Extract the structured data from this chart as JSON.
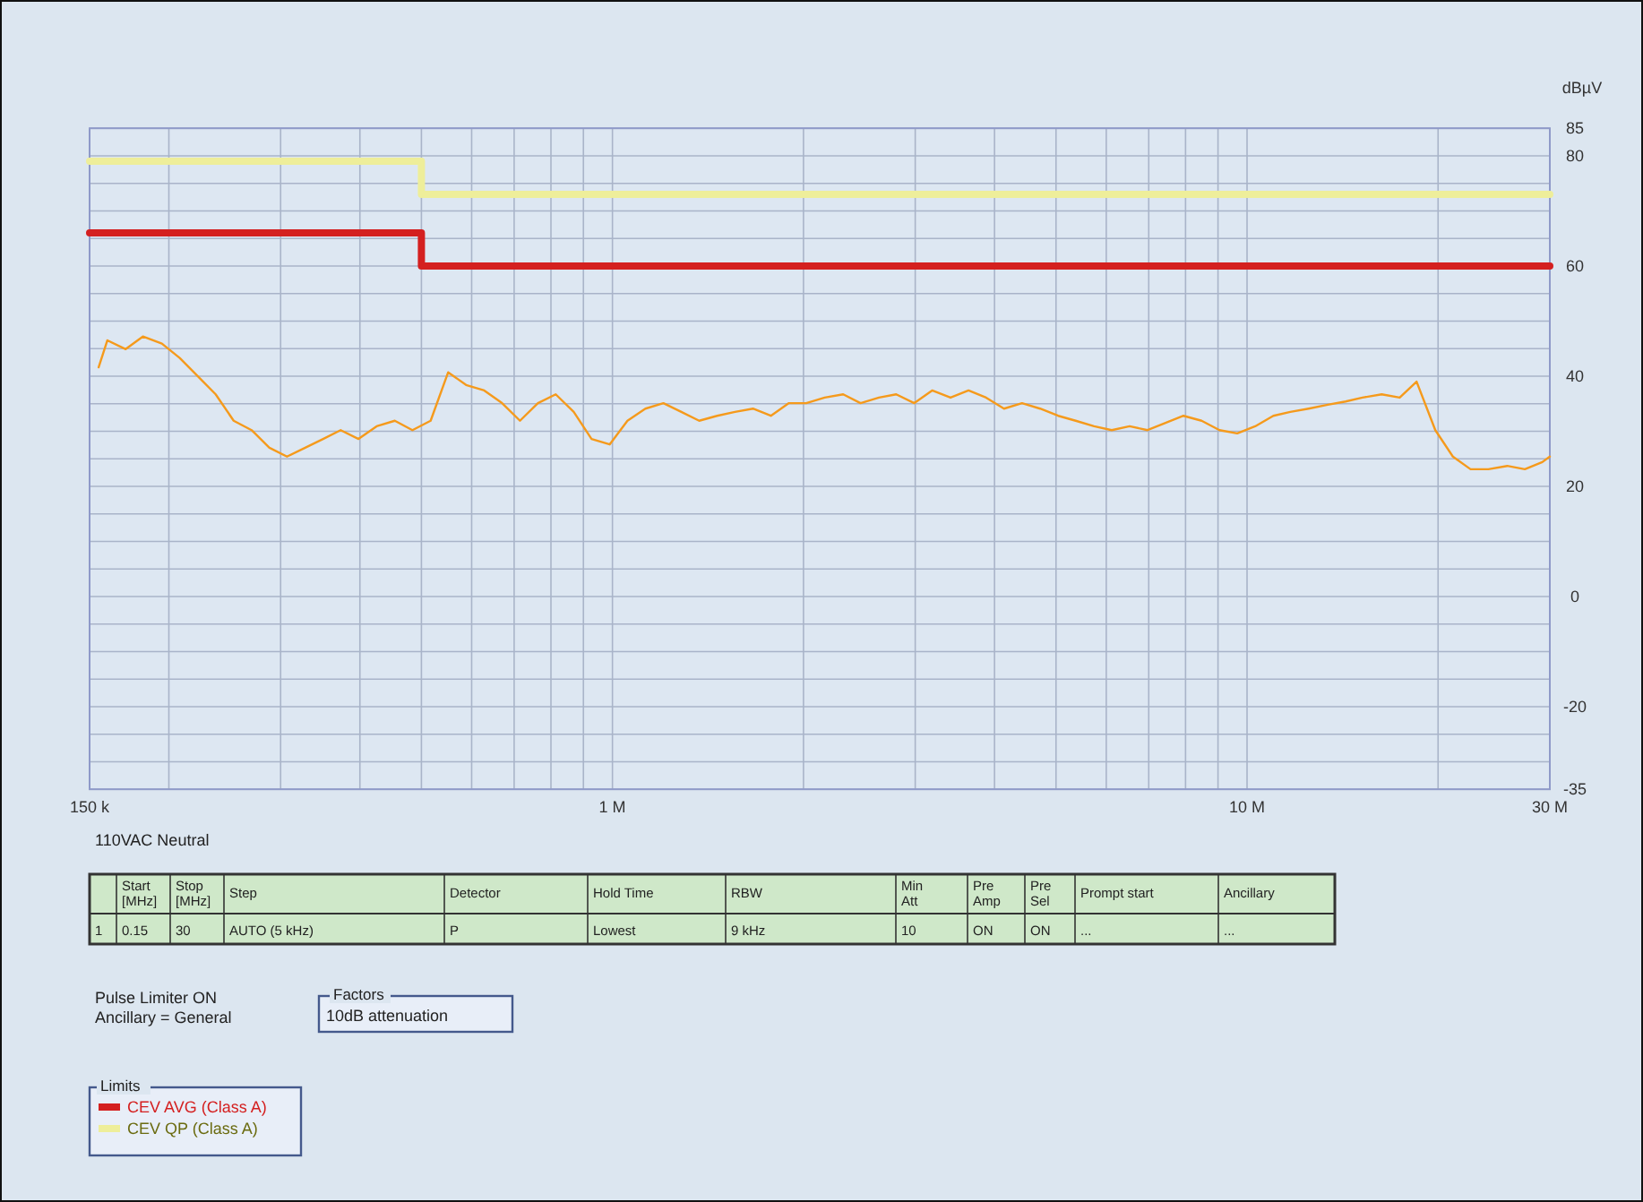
{
  "chart_data": [
    {
      "type": "line",
      "ylabel": "dBµV",
      "xlim": [
        0.15,
        30
      ],
      "log": "x",
      "grid": true,
      "legend": "bottom left",
      "legend_title": "Limits",
      "xticks": [
        {
          "value": 0.15,
          "label": "150 k"
        },
        {
          "value": 0.2,
          "label": null
        },
        {
          "value": 0.3,
          "label": null
        },
        {
          "value": 0.4,
          "label": null
        },
        {
          "value": 0.5,
          "label": null
        },
        {
          "value": 0.6,
          "label": null
        },
        {
          "value": 0.7,
          "label": null
        },
        {
          "value": 0.8,
          "label": null
        },
        {
          "value": 0.9,
          "label": null
        },
        {
          "value": 1,
          "label": "1 M"
        },
        {
          "value": 2,
          "label": null
        },
        {
          "value": 3,
          "label": null
        },
        {
          "value": 4,
          "label": null
        },
        {
          "value": 5,
          "label": null
        },
        {
          "value": 6,
          "label": null
        },
        {
          "value": 7,
          "label": null
        },
        {
          "value": 8,
          "label": null
        },
        {
          "value": 9,
          "label": null
        },
        {
          "value": 10,
          "label": "10 M"
        },
        {
          "value": 20,
          "label": null
        },
        {
          "value": 30,
          "label": "30 M"
        }
      ],
      "ylim": [
        -35,
        85
      ],
      "yticks": [
        85,
        80,
        {
          "value": 75,
          "label": null
        },
        {
          "value": 70,
          "label": null
        },
        {
          "value": 65,
          "label": null
        },
        60,
        {
          "value": 55,
          "label": null
        },
        {
          "value": 50,
          "label": null
        },
        {
          "value": 45,
          "label": null
        },
        40,
        {
          "value": 35,
          "label": null
        },
        {
          "value": 30,
          "label": null
        },
        {
          "value": 25,
          "label": null
        },
        20,
        {
          "value": 15,
          "label": null
        },
        {
          "value": 10,
          "label": null
        },
        {
          "value": 5,
          "label": null
        },
        0,
        {
          "value": -5,
          "label": null
        },
        {
          "value": -10,
          "label": null
        },
        {
          "value": -15,
          "label": null
        },
        -20,
        {
          "value": -25,
          "label": null
        },
        {
          "value": -30,
          "label": null
        },
        -35
      ],
      "annotations": [
        "110VAC Neutral",
        "Pulse Limiter ON",
        "Ancillary = General",
        "Factors",
        "10dB attenuation"
      ],
      "series": [
        {
          "type": "step",
          "name": "CEV QP (Class A)",
          "color": "#eeee9a",
          "x": [
            0.15,
            0.5,
            30
          ],
          "values": [
            79,
            73,
            73
          ]
        },
        {
          "type": "step",
          "name": "CEV AVG (Class A)",
          "color": "#d42020",
          "x": [
            0.15,
            0.5,
            30
          ],
          "values": [
            66,
            60,
            60
          ]
        },
        {
          "type": "line",
          "color": "#f59a1c",
          "x": [
            0.155,
            0.16,
            0.171,
            0.182,
            0.195,
            0.208,
            0.222,
            0.237,
            0.253,
            0.27,
            0.288,
            0.307,
            0.328,
            0.35,
            0.373,
            0.398,
            0.425,
            0.454,
            0.484,
            0.517,
            0.551,
            0.588,
            0.628,
            0.67,
            0.715,
            0.763,
            0.814,
            0.869,
            0.927,
            0.99,
            1.056,
            1.127,
            1.203,
            1.284,
            1.37,
            1.462,
            1.56,
            1.665,
            1.777,
            1.897,
            2.02,
            2.16,
            2.31,
            2.46,
            2.63,
            2.8,
            2.99,
            3.19,
            3.41,
            3.64,
            3.88,
            4.14,
            4.42,
            4.72,
            5.04,
            5.37,
            5.74,
            6.12,
            6.53,
            6.97,
            7.44,
            7.94,
            8.48,
            9.05,
            9.65,
            10.3,
            11,
            11.7,
            12.5,
            13.4,
            14.3,
            15.2,
            16.3,
            17.4,
            18.5,
            19.8,
            21.1,
            22.5,
            24,
            25.7,
            27.4,
            29.2,
            30
          ],
          "values": [
            41.6,
            46.5,
            44.9,
            47.2,
            45.9,
            43.3,
            40,
            36.7,
            31.9,
            30.2,
            27,
            25.4,
            27,
            28.6,
            30.2,
            28.6,
            30.9,
            31.9,
            30.2,
            31.9,
            40.7,
            38.4,
            37.4,
            35.1,
            31.9,
            35.1,
            36.7,
            33.5,
            28.6,
            27.6,
            31.9,
            34.1,
            35.1,
            33.5,
            31.9,
            32.8,
            33.5,
            34.1,
            32.8,
            35.1,
            35.1,
            36.1,
            36.7,
            35.1,
            36.1,
            36.7,
            35.1,
            37.4,
            36.1,
            37.4,
            36.1,
            34.1,
            35.1,
            34.1,
            32.8,
            31.9,
            30.9,
            30.2,
            30.9,
            30.2,
            31.5,
            32.8,
            31.9,
            30.2,
            29.6,
            30.9,
            32.8,
            33.5,
            34.1,
            34.8,
            35.4,
            36.1,
            36.7,
            36.1,
            39,
            30.2,
            25.4,
            23.1,
            23.1,
            23.7,
            23.1,
            24.4,
            25.4
          ]
        }
      ]
    },
    {
      "type": "other",
      "categories": [
        null,
        "Start [MHz]",
        "Stop [MHz]",
        "Step",
        "Detector",
        "Hold Time",
        "RBW",
        "Min Att",
        "Pre Amp",
        "Pre Sel",
        "Prompt start",
        "Ancillary"
      ],
      "cell_labels": [
        [
          "1",
          "0.15",
          "30",
          "AUTO (5 kHz)",
          "P",
          "Lowest",
          "9 kHz",
          "10",
          "ON",
          "ON",
          "...",
          "..."
        ]
      ]
    }
  ]
}
